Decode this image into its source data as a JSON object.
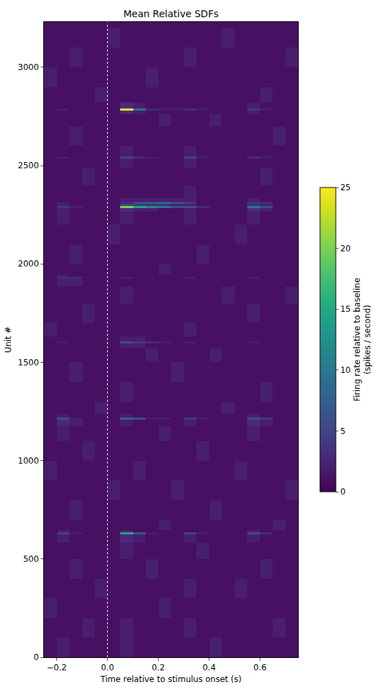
{
  "chart_data": {
    "type": "heatmap",
    "title": "Mean Relative SDFs",
    "x_label": "Time relative to stimulus onset (s)",
    "y_label": "Unit #",
    "colorbar_label": [
      "Firing rate relative to baseline",
      "(spikes / second)"
    ],
    "xlim": [
      -0.25,
      0.75
    ],
    "xticks": [
      {
        "value": -0.2,
        "label": "−0.2"
      },
      {
        "value": 0,
        "label": "0.0"
      },
      0.2,
      0.4,
      0.6
    ],
    "ylim": [
      0,
      3230
    ],
    "yticks": [
      0,
      500,
      1000,
      1500,
      2000,
      2500,
      3000
    ],
    "color_range": [
      0,
      25
    ],
    "color_ticks": [
      0,
      5,
      10,
      15,
      20,
      25
    ],
    "onset_line": 0,
    "x": [
      -0.225,
      -0.175,
      -0.125,
      -0.075,
      -0.025,
      0.025,
      0.075,
      0.125,
      0.175,
      0.225,
      0.275,
      0.325,
      0.375,
      0.425,
      0.475,
      0.525,
      0.575,
      0.625,
      0.675,
      0.725
    ],
    "y": [
      50,
      150,
      250,
      350,
      450,
      550,
      620,
      630,
      640,
      650,
      750,
      850,
      950,
      1050,
      1150,
      1205,
      1215,
      1225,
      1250,
      1350,
      1450,
      1550,
      1590,
      1600,
      1610,
      1650,
      1750,
      1850,
      1920,
      1930,
      1940,
      1950,
      2050,
      2150,
      2250,
      2280,
      2290,
      2300,
      2310,
      2320,
      2350,
      2450,
      2530,
      2540,
      2550,
      2650,
      2750,
      2775,
      2785,
      2795,
      2850,
      2950,
      3050,
      3150,
      3250
    ],
    "z": [
      [
        1,
        2,
        1,
        1,
        1,
        1,
        2,
        1,
        1,
        1,
        1,
        1,
        1,
        2,
        1,
        1,
        1,
        1,
        1,
        1
      ],
      [
        1,
        1,
        1,
        2,
        1,
        1,
        2,
        1,
        1,
        1,
        1,
        2,
        1,
        1,
        1,
        1,
        1,
        1,
        2,
        1
      ],
      [
        2,
        1,
        1,
        1,
        1,
        1,
        1,
        1,
        1,
        2,
        1,
        1,
        1,
        1,
        1,
        1,
        1,
        1,
        1,
        1
      ],
      [
        1,
        1,
        1,
        1,
        2,
        1,
        1,
        1,
        1,
        1,
        1,
        2,
        1,
        1,
        1,
        2,
        1,
        1,
        1,
        1
      ],
      [
        1,
        1,
        2,
        1,
        1,
        1,
        1,
        1,
        2,
        1,
        1,
        1,
        1,
        1,
        1,
        1,
        1,
        2,
        1,
        1
      ],
      [
        1,
        1,
        1,
        1,
        1,
        1,
        2,
        1,
        1,
        1,
        1,
        1,
        2,
        1,
        1,
        1,
        1,
        1,
        1,
        1
      ],
      [
        1,
        2,
        1,
        1,
        1,
        1,
        3,
        2,
        1,
        1,
        1,
        2,
        1,
        1,
        1,
        1,
        2,
        1,
        1,
        1
      ],
      [
        1,
        5,
        2,
        1,
        1,
        1,
        15,
        7,
        2,
        1,
        1,
        5,
        2,
        1,
        1,
        1,
        6,
        3,
        1,
        1
      ],
      [
        1,
        2,
        1,
        1,
        1,
        1,
        2,
        1,
        1,
        1,
        1,
        1,
        1,
        1,
        1,
        1,
        2,
        1,
        1,
        1
      ],
      [
        1,
        1,
        1,
        1,
        1,
        1,
        1,
        1,
        1,
        2,
        1,
        1,
        1,
        1,
        1,
        1,
        1,
        1,
        2,
        1
      ],
      [
        1,
        1,
        2,
        1,
        1,
        1,
        1,
        1,
        1,
        1,
        1,
        1,
        1,
        2,
        1,
        1,
        1,
        1,
        1,
        1
      ],
      [
        1,
        1,
        1,
        1,
        1,
        2,
        1,
        1,
        1,
        1,
        2,
        1,
        1,
        1,
        1,
        1,
        1,
        1,
        1,
        2
      ],
      [
        2,
        1,
        1,
        1,
        1,
        1,
        1,
        2,
        1,
        1,
        1,
        1,
        1,
        1,
        1,
        2,
        1,
        1,
        1,
        1
      ],
      [
        1,
        1,
        1,
        2,
        1,
        1,
        1,
        1,
        1,
        1,
        1,
        1,
        2,
        1,
        1,
        1,
        1,
        1,
        1,
        1
      ],
      [
        1,
        2,
        1,
        1,
        1,
        1,
        1,
        1,
        1,
        2,
        1,
        1,
        1,
        1,
        1,
        1,
        2,
        1,
        1,
        1
      ],
      [
        1,
        3,
        2,
        1,
        1,
        1,
        2,
        1,
        1,
        1,
        1,
        2,
        1,
        1,
        1,
        1,
        3,
        2,
        1,
        1
      ],
      [
        1,
        6,
        2,
        1,
        1,
        1,
        8,
        6,
        2,
        2,
        1,
        4,
        2,
        1,
        1,
        1,
        6,
        4,
        1,
        1
      ],
      [
        1,
        2,
        1,
        1,
        1,
        1,
        2,
        1,
        1,
        1,
        1,
        1,
        1,
        1,
        1,
        1,
        2,
        1,
        1,
        1
      ],
      [
        1,
        1,
        1,
        1,
        2,
        1,
        1,
        1,
        1,
        1,
        1,
        1,
        1,
        1,
        2,
        1,
        1,
        1,
        1,
        1
      ],
      [
        1,
        1,
        1,
        1,
        1,
        1,
        2,
        1,
        1,
        1,
        1,
        1,
        1,
        1,
        1,
        1,
        1,
        2,
        1,
        1
      ],
      [
        1,
        1,
        2,
        1,
        1,
        1,
        1,
        1,
        1,
        1,
        2,
        1,
        1,
        1,
        1,
        1,
        1,
        1,
        1,
        1
      ],
      [
        1,
        1,
        1,
        1,
        1,
        1,
        1,
        1,
        2,
        1,
        1,
        1,
        1,
        2,
        1,
        1,
        1,
        1,
        1,
        1
      ],
      [
        1,
        1,
        1,
        1,
        1,
        1,
        2,
        2,
        1,
        1,
        1,
        1,
        1,
        1,
        1,
        1,
        1,
        1,
        1,
        1
      ],
      [
        1,
        2,
        1,
        1,
        1,
        1,
        6,
        4,
        3,
        2,
        1,
        2,
        1,
        1,
        1,
        1,
        2,
        1,
        1,
        1
      ],
      [
        1,
        1,
        1,
        1,
        1,
        1,
        2,
        2,
        1,
        1,
        1,
        1,
        1,
        1,
        1,
        1,
        1,
        1,
        1,
        1
      ],
      [
        2,
        1,
        1,
        1,
        1,
        1,
        1,
        1,
        1,
        1,
        1,
        2,
        1,
        1,
        1,
        1,
        1,
        1,
        1,
        1
      ],
      [
        1,
        1,
        1,
        2,
        1,
        1,
        1,
        1,
        1,
        1,
        1,
        1,
        1,
        1,
        1,
        1,
        2,
        1,
        1,
        1
      ],
      [
        1,
        1,
        1,
        1,
        1,
        1,
        2,
        1,
        1,
        1,
        1,
        1,
        1,
        1,
        2,
        1,
        1,
        1,
        1,
        2
      ],
      [
        1,
        2,
        2,
        1,
        1,
        1,
        1,
        1,
        1,
        1,
        1,
        1,
        1,
        1,
        1,
        1,
        1,
        1,
        1,
        1
      ],
      [
        1,
        3,
        3,
        1,
        1,
        1,
        2,
        1,
        1,
        1,
        1,
        2,
        1,
        1,
        1,
        1,
        2,
        1,
        1,
        1
      ],
      [
        1,
        2,
        1,
        1,
        1,
        1,
        1,
        1,
        1,
        1,
        1,
        1,
        1,
        1,
        1,
        1,
        1,
        1,
        1,
        1
      ],
      [
        1,
        1,
        1,
        1,
        1,
        1,
        1,
        1,
        1,
        2,
        1,
        1,
        1,
        1,
        1,
        1,
        1,
        1,
        1,
        1
      ],
      [
        1,
        1,
        2,
        1,
        1,
        1,
        1,
        1,
        1,
        1,
        1,
        1,
        2,
        1,
        1,
        1,
        1,
        1,
        1,
        1
      ],
      [
        1,
        1,
        1,
        1,
        1,
        2,
        1,
        1,
        1,
        1,
        1,
        1,
        1,
        1,
        1,
        2,
        1,
        1,
        1,
        1
      ],
      [
        1,
        2,
        1,
        1,
        1,
        1,
        2,
        1,
        1,
        1,
        1,
        2,
        1,
        1,
        1,
        1,
        2,
        1,
        1,
        1
      ],
      [
        1,
        2,
        1,
        1,
        1,
        1,
        3,
        2,
        2,
        1,
        1,
        2,
        1,
        1,
        1,
        1,
        3,
        2,
        1,
        1
      ],
      [
        1,
        4,
        2,
        1,
        1,
        1,
        20,
        15,
        12,
        10,
        6,
        6,
        3,
        1,
        1,
        1,
        10,
        6,
        1,
        1
      ],
      [
        1,
        2,
        1,
        1,
        1,
        1,
        5,
        4,
        3,
        3,
        2,
        2,
        1,
        1,
        1,
        1,
        3,
        2,
        1,
        1
      ],
      [
        1,
        2,
        1,
        1,
        1,
        1,
        3,
        6,
        7,
        8,
        6,
        4,
        1,
        1,
        1,
        1,
        4,
        3,
        1,
        1
      ],
      [
        1,
        1,
        1,
        1,
        1,
        1,
        2,
        2,
        2,
        2,
        2,
        2,
        1,
        1,
        1,
        1,
        2,
        1,
        1,
        1
      ],
      [
        1,
        1,
        1,
        1,
        1,
        1,
        1,
        1,
        1,
        1,
        1,
        2,
        1,
        1,
        1,
        1,
        1,
        1,
        1,
        1
      ],
      [
        1,
        1,
        1,
        2,
        1,
        1,
        1,
        1,
        1,
        1,
        1,
        1,
        1,
        1,
        1,
        1,
        1,
        2,
        1,
        1
      ],
      [
        1,
        1,
        1,
        1,
        1,
        1,
        2,
        1,
        1,
        1,
        1,
        2,
        1,
        1,
        1,
        1,
        1,
        1,
        1,
        1
      ],
      [
        1,
        2,
        1,
        1,
        1,
        1,
        5,
        3,
        2,
        1,
        1,
        5,
        2,
        1,
        1,
        1,
        3,
        2,
        1,
        1
      ],
      [
        1,
        1,
        1,
        1,
        1,
        1,
        2,
        1,
        1,
        1,
        1,
        2,
        1,
        1,
        1,
        1,
        1,
        1,
        1,
        1
      ],
      [
        1,
        1,
        2,
        1,
        1,
        1,
        1,
        1,
        1,
        1,
        1,
        1,
        1,
        1,
        1,
        1,
        1,
        1,
        2,
        1
      ],
      [
        1,
        1,
        1,
        1,
        1,
        1,
        1,
        1,
        1,
        2,
        1,
        1,
        1,
        2,
        1,
        1,
        1,
        1,
        1,
        1
      ],
      [
        1,
        1,
        1,
        1,
        1,
        1,
        3,
        2,
        1,
        1,
        1,
        1,
        1,
        1,
        1,
        1,
        2,
        1,
        1,
        1
      ],
      [
        1,
        2,
        1,
        1,
        1,
        1,
        25,
        10,
        3,
        2,
        2,
        3,
        2,
        1,
        1,
        1,
        4,
        2,
        1,
        1
      ],
      [
        1,
        1,
        1,
        1,
        1,
        1,
        3,
        2,
        1,
        1,
        1,
        1,
        1,
        1,
        1,
        1,
        2,
        1,
        1,
        1
      ],
      [
        1,
        1,
        1,
        1,
        2,
        1,
        1,
        1,
        1,
        1,
        1,
        1,
        1,
        1,
        1,
        1,
        1,
        2,
        1,
        1
      ],
      [
        2,
        1,
        1,
        1,
        1,
        1,
        1,
        1,
        2,
        1,
        1,
        1,
        1,
        1,
        1,
        1,
        1,
        1,
        1,
        1
      ],
      [
        1,
        1,
        2,
        1,
        1,
        1,
        1,
        1,
        1,
        1,
        1,
        2,
        1,
        1,
        1,
        1,
        1,
        1,
        1,
        2
      ],
      [
        1,
        1,
        1,
        1,
        1,
        2,
        1,
        1,
        1,
        1,
        1,
        1,
        1,
        1,
        2,
        1,
        1,
        1,
        1,
        1
      ],
      [
        1,
        1,
        1,
        1,
        1,
        1,
        1,
        1,
        1,
        1,
        1,
        1,
        1,
        1,
        1,
        1,
        1,
        1,
        1,
        1
      ]
    ]
  }
}
